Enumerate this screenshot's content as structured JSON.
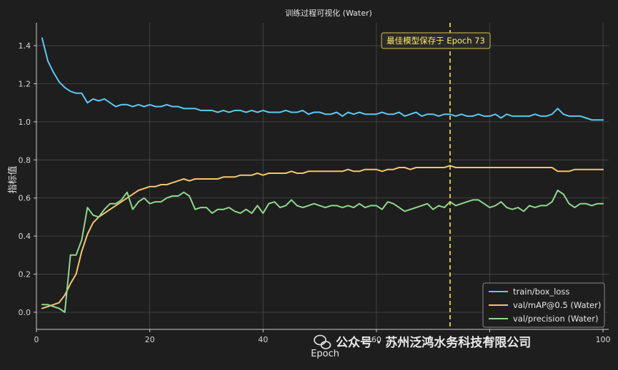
{
  "chart_data": {
    "type": "line",
    "title": "训练过程可视化 (Water)",
    "xlabel": "Epoch",
    "ylabel": "指标值",
    "xlim": [
      0,
      101
    ],
    "ylim": [
      -0.09,
      1.52
    ],
    "xticks": [
      0,
      20,
      40,
      60,
      80,
      100
    ],
    "yticks": [
      0.0,
      0.2,
      0.4,
      0.6,
      0.8,
      1.0,
      1.2,
      1.4
    ],
    "xtick_labels": [
      "0",
      "20",
      "40",
      "60",
      "80",
      "100"
    ],
    "ytick_labels": [
      "0.0",
      "0.2",
      "0.4",
      "0.6",
      "0.8",
      "1.0",
      "1.2",
      "1.4"
    ],
    "grid": true,
    "legend_position": "bottom-right",
    "series": [
      {
        "name": "train/box_loss",
        "color": "#5ec8f2",
        "x": [
          1,
          2,
          3,
          4,
          5,
          6,
          7,
          8,
          9,
          10,
          11,
          12,
          13,
          14,
          15,
          16,
          17,
          18,
          19,
          20,
          21,
          22,
          23,
          24,
          25,
          26,
          27,
          28,
          29,
          30,
          31,
          32,
          33,
          34,
          35,
          36,
          37,
          38,
          39,
          40,
          41,
          42,
          43,
          44,
          45,
          46,
          47,
          48,
          49,
          50,
          51,
          52,
          53,
          54,
          55,
          56,
          57,
          58,
          59,
          60,
          61,
          62,
          63,
          64,
          65,
          66,
          67,
          68,
          69,
          70,
          71,
          72,
          73,
          74,
          75,
          76,
          77,
          78,
          79,
          80,
          81,
          82,
          83,
          84,
          85,
          86,
          87,
          88,
          89,
          90,
          91,
          92,
          93,
          94,
          95,
          96,
          97,
          98,
          99,
          100
        ],
        "values": [
          1.44,
          1.32,
          1.26,
          1.21,
          1.18,
          1.16,
          1.15,
          1.15,
          1.1,
          1.12,
          1.11,
          1.12,
          1.1,
          1.08,
          1.09,
          1.09,
          1.08,
          1.09,
          1.08,
          1.09,
          1.08,
          1.08,
          1.09,
          1.08,
          1.08,
          1.07,
          1.07,
          1.07,
          1.06,
          1.06,
          1.06,
          1.05,
          1.06,
          1.05,
          1.06,
          1.06,
          1.05,
          1.06,
          1.05,
          1.06,
          1.05,
          1.05,
          1.05,
          1.06,
          1.05,
          1.05,
          1.06,
          1.04,
          1.05,
          1.05,
          1.04,
          1.04,
          1.05,
          1.03,
          1.05,
          1.04,
          1.05,
          1.04,
          1.04,
          1.04,
          1.05,
          1.04,
          1.04,
          1.05,
          1.03,
          1.04,
          1.05,
          1.03,
          1.04,
          1.04,
          1.03,
          1.04,
          1.04,
          1.03,
          1.04,
          1.03,
          1.03,
          1.04,
          1.03,
          1.03,
          1.04,
          1.02,
          1.04,
          1.03,
          1.03,
          1.03,
          1.03,
          1.04,
          1.03,
          1.03,
          1.04,
          1.07,
          1.04,
          1.03,
          1.03,
          1.03,
          1.02,
          1.01,
          1.01,
          1.01
        ]
      },
      {
        "name": "val/mAP@0.5 (Water)",
        "color": "#f6c56f",
        "x": [
          1,
          2,
          3,
          4,
          5,
          6,
          7,
          8,
          9,
          10,
          11,
          12,
          13,
          14,
          15,
          16,
          17,
          18,
          19,
          20,
          21,
          22,
          23,
          24,
          25,
          26,
          27,
          28,
          29,
          30,
          31,
          32,
          33,
          34,
          35,
          36,
          37,
          38,
          39,
          40,
          41,
          42,
          43,
          44,
          45,
          46,
          47,
          48,
          49,
          50,
          51,
          52,
          53,
          54,
          55,
          56,
          57,
          58,
          59,
          60,
          61,
          62,
          63,
          64,
          65,
          66,
          67,
          68,
          69,
          70,
          71,
          72,
          73,
          74,
          75,
          76,
          77,
          78,
          79,
          80,
          81,
          82,
          83,
          84,
          85,
          86,
          87,
          88,
          89,
          90,
          91,
          92,
          93,
          94,
          95,
          96,
          97,
          98,
          99,
          100
        ],
        "values": [
          0.02,
          0.03,
          0.04,
          0.05,
          0.09,
          0.15,
          0.2,
          0.32,
          0.41,
          0.47,
          0.5,
          0.52,
          0.54,
          0.56,
          0.58,
          0.6,
          0.62,
          0.64,
          0.65,
          0.66,
          0.66,
          0.67,
          0.67,
          0.68,
          0.69,
          0.7,
          0.69,
          0.7,
          0.7,
          0.7,
          0.7,
          0.7,
          0.71,
          0.71,
          0.71,
          0.72,
          0.72,
          0.72,
          0.73,
          0.72,
          0.73,
          0.73,
          0.73,
          0.73,
          0.74,
          0.73,
          0.73,
          0.74,
          0.74,
          0.74,
          0.74,
          0.74,
          0.74,
          0.74,
          0.75,
          0.74,
          0.74,
          0.75,
          0.75,
          0.75,
          0.74,
          0.75,
          0.75,
          0.76,
          0.76,
          0.75,
          0.76,
          0.76,
          0.76,
          0.76,
          0.76,
          0.76,
          0.77,
          0.76,
          0.76,
          0.76,
          0.76,
          0.76,
          0.76,
          0.76,
          0.76,
          0.76,
          0.76,
          0.76,
          0.76,
          0.76,
          0.76,
          0.76,
          0.76,
          0.76,
          0.76,
          0.74,
          0.74,
          0.74,
          0.75,
          0.75,
          0.75,
          0.75,
          0.75,
          0.75
        ]
      },
      {
        "name": "val/precision (Water)",
        "color": "#8fd98f",
        "x": [
          1,
          2,
          3,
          4,
          5,
          6,
          7,
          8,
          9,
          10,
          11,
          12,
          13,
          14,
          15,
          16,
          17,
          18,
          19,
          20,
          21,
          22,
          23,
          24,
          25,
          26,
          27,
          28,
          29,
          30,
          31,
          32,
          33,
          34,
          35,
          36,
          37,
          38,
          39,
          40,
          41,
          42,
          43,
          44,
          45,
          46,
          47,
          48,
          49,
          50,
          51,
          52,
          53,
          54,
          55,
          56,
          57,
          58,
          59,
          60,
          61,
          62,
          63,
          64,
          65,
          66,
          67,
          68,
          69,
          70,
          71,
          72,
          73,
          74,
          75,
          76,
          77,
          78,
          79,
          80,
          81,
          82,
          83,
          84,
          85,
          86,
          87,
          88,
          89,
          90,
          91,
          92,
          93,
          94,
          95,
          96,
          97,
          98,
          99,
          100
        ],
        "values": [
          0.04,
          0.04,
          0.03,
          0.02,
          0.0,
          0.3,
          0.3,
          0.38,
          0.55,
          0.51,
          0.5,
          0.54,
          0.57,
          0.57,
          0.59,
          0.63,
          0.54,
          0.58,
          0.6,
          0.57,
          0.58,
          0.58,
          0.6,
          0.61,
          0.61,
          0.63,
          0.61,
          0.54,
          0.55,
          0.55,
          0.52,
          0.54,
          0.54,
          0.55,
          0.53,
          0.52,
          0.54,
          0.52,
          0.56,
          0.52,
          0.57,
          0.58,
          0.55,
          0.56,
          0.59,
          0.56,
          0.55,
          0.56,
          0.57,
          0.56,
          0.55,
          0.56,
          0.56,
          0.55,
          0.56,
          0.55,
          0.57,
          0.55,
          0.56,
          0.56,
          0.54,
          0.58,
          0.57,
          0.55,
          0.53,
          0.54,
          0.55,
          0.56,
          0.57,
          0.54,
          0.56,
          0.55,
          0.58,
          0.56,
          0.57,
          0.58,
          0.59,
          0.59,
          0.57,
          0.55,
          0.56,
          0.58,
          0.55,
          0.54,
          0.55,
          0.53,
          0.56,
          0.55,
          0.56,
          0.56,
          0.58,
          0.64,
          0.62,
          0.57,
          0.55,
          0.57,
          0.57,
          0.56,
          0.57,
          0.57
        ]
      }
    ],
    "best_epoch": 73,
    "annotation": "最佳模型保存于 Epoch 73"
  },
  "watermark": {
    "text": "公众号 · 苏州泛鸿水务科技有限公司",
    "icon": "wechat-icon"
  },
  "colors": {
    "background": "#1e1e1e",
    "grid": "#4a4a4a",
    "best_line": "#ffeb3b"
  }
}
